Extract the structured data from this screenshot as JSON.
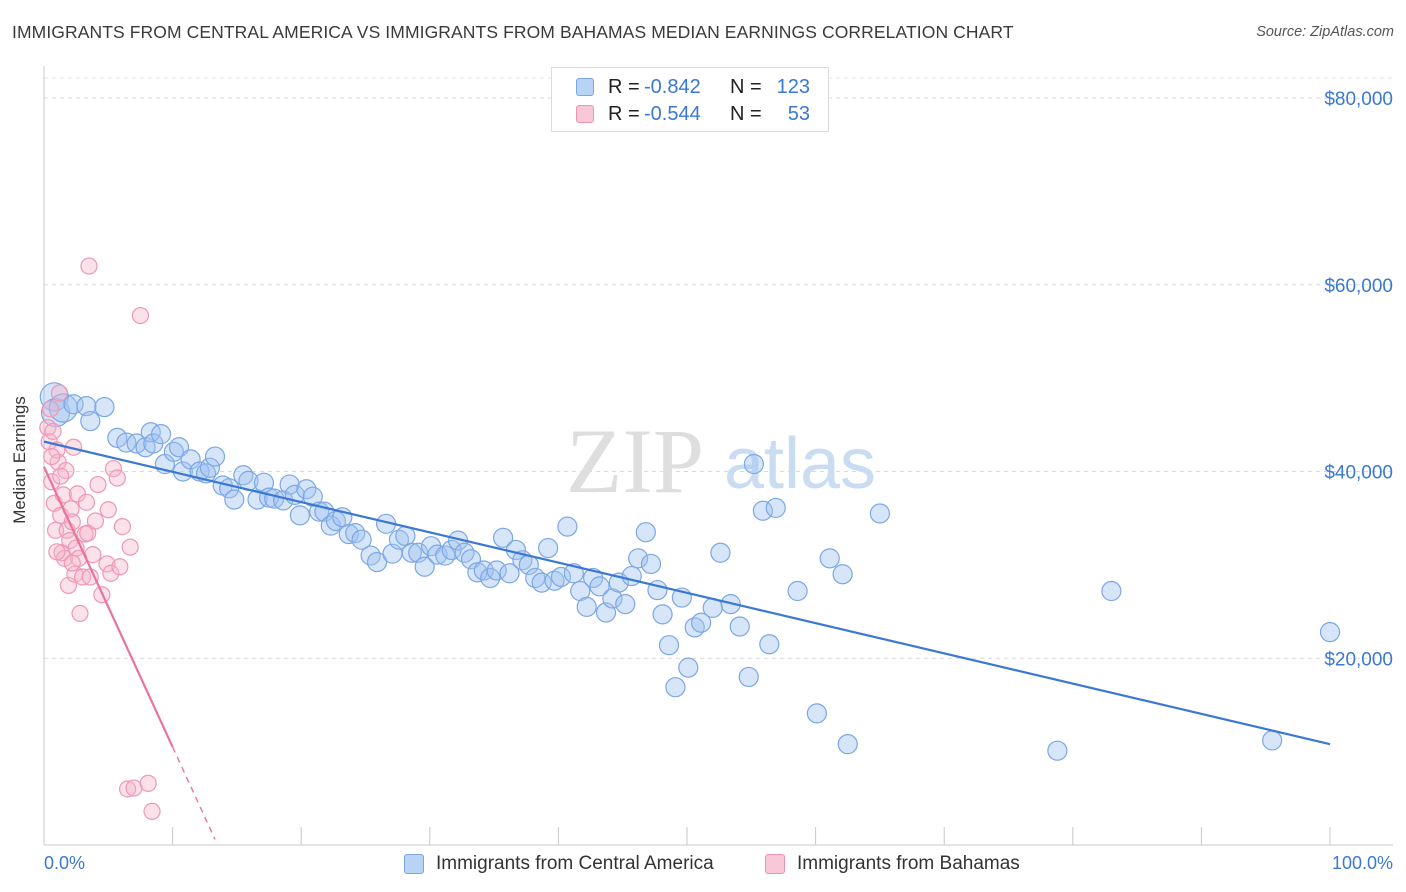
{
  "title": "IMMIGRANTS FROM CENTRAL AMERICA VS IMMIGRANTS FROM BAHAMAS MEDIAN EARNINGS CORRELATION CHART",
  "source": "Source: ZipAtlas.com",
  "watermark": {
    "zip": "ZIP",
    "atlas": "atlas"
  },
  "stats": [
    {
      "r_label": "R =",
      "r_value": "-0.842",
      "n_label": "N =",
      "n_value": "123",
      "color": "#3a78d4"
    },
    {
      "r_label": "R =",
      "r_value": "-0.544",
      "n_label": "N =",
      "n_value": "53",
      "color": "#e8749c"
    }
  ],
  "legend": [
    {
      "label": "Immigrants from Central America",
      "color": "#b9d3f5"
    },
    {
      "label": "Immigrants from Bahamas",
      "color": "#f9c8d8"
    }
  ],
  "colors": {
    "blue": "#3a78d4",
    "pink": "#e8749c",
    "tick_text": "#3a78d4"
  },
  "chart_data": {
    "type": "scatter",
    "title": "IMMIGRANTS FROM CENTRAL AMERICA VS IMMIGRANTS FROM BAHAMAS MEDIAN EARNINGS CORRELATION CHART",
    "ylabel": "Median Earnings",
    "xlabel": "",
    "xlim": [
      0,
      100
    ],
    "ylim": [
      0,
      80000
    ],
    "x_tick_labels": [
      "0.0%",
      "100.0%"
    ],
    "y_ticks": [
      {
        "value": 20000,
        "label": "$20,000"
      },
      {
        "value": 40000,
        "label": "$40,000"
      },
      {
        "value": 60000,
        "label": "$60,000"
      },
      {
        "value": 80000,
        "label": "$80,000"
      }
    ],
    "series": [
      {
        "name": "Immigrants from Central America",
        "color": "#3a78d4",
        "trend": {
          "x": [
            0,
            100
          ],
          "y": [
            43200,
            10800
          ],
          "dashed_x": []
        },
        "points": [
          {
            "x": 0.8,
            "y": 48000,
            "big": true
          },
          {
            "x": 0.9,
            "y": 46300,
            "big": true
          },
          {
            "x": 1.5,
            "y": 46800,
            "big": true
          },
          {
            "x": 2.3,
            "y": 47200
          },
          {
            "x": 3.3,
            "y": 47000
          },
          {
            "x": 3.6,
            "y": 45400
          },
          {
            "x": 4.7,
            "y": 46900
          },
          {
            "x": 5.7,
            "y": 43600
          },
          {
            "x": 6.4,
            "y": 43100
          },
          {
            "x": 7.2,
            "y": 43000
          },
          {
            "x": 7.9,
            "y": 42600
          },
          {
            "x": 8.3,
            "y": 44200
          },
          {
            "x": 8.5,
            "y": 43000
          },
          {
            "x": 9.1,
            "y": 44000
          },
          {
            "x": 9.4,
            "y": 40800
          },
          {
            "x": 10.1,
            "y": 42100
          },
          {
            "x": 10.5,
            "y": 42600
          },
          {
            "x": 10.8,
            "y": 40000
          },
          {
            "x": 11.4,
            "y": 41300
          },
          {
            "x": 12.1,
            "y": 40000
          },
          {
            "x": 12.6,
            "y": 39800
          },
          {
            "x": 12.9,
            "y": 40400
          },
          {
            "x": 13.3,
            "y": 41600
          },
          {
            "x": 13.9,
            "y": 38500
          },
          {
            "x": 14.4,
            "y": 38200
          },
          {
            "x": 14.8,
            "y": 37000
          },
          {
            "x": 15.5,
            "y": 39600
          },
          {
            "x": 15.9,
            "y": 39000
          },
          {
            "x": 16.6,
            "y": 37000
          },
          {
            "x": 17.1,
            "y": 38800
          },
          {
            "x": 17.5,
            "y": 37200
          },
          {
            "x": 17.9,
            "y": 37100
          },
          {
            "x": 18.6,
            "y": 36900
          },
          {
            "x": 19.1,
            "y": 38600
          },
          {
            "x": 19.5,
            "y": 37500
          },
          {
            "x": 19.9,
            "y": 35300
          },
          {
            "x": 20.4,
            "y": 38100
          },
          {
            "x": 20.9,
            "y": 37300
          },
          {
            "x": 21.4,
            "y": 35700
          },
          {
            "x": 21.8,
            "y": 35700
          },
          {
            "x": 22.3,
            "y": 34200
          },
          {
            "x": 22.7,
            "y": 34700
          },
          {
            "x": 23.2,
            "y": 35100
          },
          {
            "x": 23.7,
            "y": 33300
          },
          {
            "x": 24.2,
            "y": 33400
          },
          {
            "x": 24.7,
            "y": 32700
          },
          {
            "x": 25.4,
            "y": 31000
          },
          {
            "x": 25.9,
            "y": 30300
          },
          {
            "x": 26.6,
            "y": 34400
          },
          {
            "x": 27.1,
            "y": 31200
          },
          {
            "x": 27.6,
            "y": 32700
          },
          {
            "x": 28.1,
            "y": 33100
          },
          {
            "x": 28.6,
            "y": 31300
          },
          {
            "x": 29.1,
            "y": 31300
          },
          {
            "x": 29.6,
            "y": 29800
          },
          {
            "x": 30.1,
            "y": 32000
          },
          {
            "x": 30.6,
            "y": 31100
          },
          {
            "x": 31.2,
            "y": 31000
          },
          {
            "x": 31.7,
            "y": 31600
          },
          {
            "x": 32.2,
            "y": 32600
          },
          {
            "x": 32.7,
            "y": 31300
          },
          {
            "x": 33.2,
            "y": 30600
          },
          {
            "x": 33.7,
            "y": 29200
          },
          {
            "x": 34.2,
            "y": 29400
          },
          {
            "x": 34.7,
            "y": 28600
          },
          {
            "x": 35.2,
            "y": 29400
          },
          {
            "x": 35.7,
            "y": 32900
          },
          {
            "x": 36.2,
            "y": 29100
          },
          {
            "x": 36.7,
            "y": 31600
          },
          {
            "x": 37.2,
            "y": 30500
          },
          {
            "x": 37.7,
            "y": 30000
          },
          {
            "x": 38.2,
            "y": 28600
          },
          {
            "x": 38.7,
            "y": 28100
          },
          {
            "x": 39.2,
            "y": 31800
          },
          {
            "x": 39.7,
            "y": 28300
          },
          {
            "x": 40.2,
            "y": 28700
          },
          {
            "x": 40.7,
            "y": 34100
          },
          {
            "x": 41.2,
            "y": 29100
          },
          {
            "x": 41.7,
            "y": 27200
          },
          {
            "x": 42.2,
            "y": 25500
          },
          {
            "x": 42.7,
            "y": 28600
          },
          {
            "x": 43.2,
            "y": 27700
          },
          {
            "x": 43.7,
            "y": 24900
          },
          {
            "x": 44.2,
            "y": 26400
          },
          {
            "x": 44.7,
            "y": 28100
          },
          {
            "x": 45.2,
            "y": 25800
          },
          {
            "x": 45.7,
            "y": 28800
          },
          {
            "x": 46.2,
            "y": 30700
          },
          {
            "x": 46.8,
            "y": 33500
          },
          {
            "x": 47.2,
            "y": 30100
          },
          {
            "x": 47.7,
            "y": 27300
          },
          {
            "x": 48.1,
            "y": 24700
          },
          {
            "x": 48.6,
            "y": 21400
          },
          {
            "x": 49.1,
            "y": 16900
          },
          {
            "x": 49.6,
            "y": 26500
          },
          {
            "x": 50.1,
            "y": 19000
          },
          {
            "x": 50.6,
            "y": 23300
          },
          {
            "x": 51.1,
            "y": 23800
          },
          {
            "x": 52.0,
            "y": 25400
          },
          {
            "x": 52.6,
            "y": 31300
          },
          {
            "x": 53.4,
            "y": 25800
          },
          {
            "x": 54.1,
            "y": 23400
          },
          {
            "x": 54.8,
            "y": 18000
          },
          {
            "x": 55.2,
            "y": 40800
          },
          {
            "x": 55.9,
            "y": 35800
          },
          {
            "x": 56.4,
            "y": 21500
          },
          {
            "x": 56.9,
            "y": 36100
          },
          {
            "x": 58.6,
            "y": 27200
          },
          {
            "x": 60.1,
            "y": 14100
          },
          {
            "x": 61.1,
            "y": 30700
          },
          {
            "x": 62.1,
            "y": 29000
          },
          {
            "x": 62.5,
            "y": 10800
          },
          {
            "x": 65.0,
            "y": 35500
          },
          {
            "x": 78.8,
            "y": 10100
          },
          {
            "x": 83.0,
            "y": 27200
          },
          {
            "x": 95.5,
            "y": 11200
          },
          {
            "x": 100.0,
            "y": 22800
          }
        ]
      },
      {
        "name": "Immigrants from Bahamas",
        "color": "#e8749c",
        "trend": {
          "x": [
            0,
            10
          ],
          "y": [
            40500,
            10500
          ],
          "dashed_x": [
            10,
            13.3
          ]
        },
        "points": [
          {
            "x": 0.3,
            "y": 44700
          },
          {
            "x": 0.4,
            "y": 43200
          },
          {
            "x": 0.5,
            "y": 46700
          },
          {
            "x": 0.6,
            "y": 38900
          },
          {
            "x": 0.7,
            "y": 44300
          },
          {
            "x": 0.8,
            "y": 36600
          },
          {
            "x": 0.9,
            "y": 33700
          },
          {
            "x": 1.0,
            "y": 42300
          },
          {
            "x": 1.1,
            "y": 41000
          },
          {
            "x": 1.2,
            "y": 48400
          },
          {
            "x": 1.3,
            "y": 35300
          },
          {
            "x": 1.4,
            "y": 31300
          },
          {
            "x": 1.5,
            "y": 37500
          },
          {
            "x": 1.6,
            "y": 30700
          },
          {
            "x": 1.7,
            "y": 40100
          },
          {
            "x": 1.8,
            "y": 33700
          },
          {
            "x": 1.9,
            "y": 27800
          },
          {
            "x": 2.0,
            "y": 32600
          },
          {
            "x": 2.1,
            "y": 36000
          },
          {
            "x": 2.2,
            "y": 34600
          },
          {
            "x": 2.3,
            "y": 42600
          },
          {
            "x": 2.4,
            "y": 29000
          },
          {
            "x": 2.5,
            "y": 31800
          },
          {
            "x": 2.6,
            "y": 37600
          },
          {
            "x": 2.7,
            "y": 30700
          },
          {
            "x": 2.8,
            "y": 24800
          },
          {
            "x": 3.0,
            "y": 28700
          },
          {
            "x": 3.2,
            "y": 33300
          },
          {
            "x": 3.4,
            "y": 33400
          },
          {
            "x": 3.5,
            "y": 62000
          },
          {
            "x": 3.6,
            "y": 28700
          },
          {
            "x": 3.8,
            "y": 31100
          },
          {
            "x": 4.0,
            "y": 34700
          },
          {
            "x": 4.2,
            "y": 38600
          },
          {
            "x": 4.5,
            "y": 26800
          },
          {
            "x": 4.9,
            "y": 30100
          },
          {
            "x": 5.0,
            "y": 35900
          },
          {
            "x": 5.2,
            "y": 29100
          },
          {
            "x": 5.4,
            "y": 40300
          },
          {
            "x": 5.7,
            "y": 39300
          },
          {
            "x": 5.9,
            "y": 29800
          },
          {
            "x": 6.1,
            "y": 34100
          },
          {
            "x": 6.5,
            "y": 6000
          },
          {
            "x": 6.7,
            "y": 31900
          },
          {
            "x": 7.0,
            "y": 6100
          },
          {
            "x": 7.5,
            "y": 56700
          },
          {
            "x": 8.1,
            "y": 6600
          },
          {
            "x": 8.4,
            "y": 3600
          },
          {
            "x": 1.0,
            "y": 31400
          },
          {
            "x": 1.3,
            "y": 39500
          },
          {
            "x": 2.2,
            "y": 30200
          },
          {
            "x": 3.3,
            "y": 36700
          },
          {
            "x": 0.6,
            "y": 41600
          }
        ]
      }
    ]
  }
}
